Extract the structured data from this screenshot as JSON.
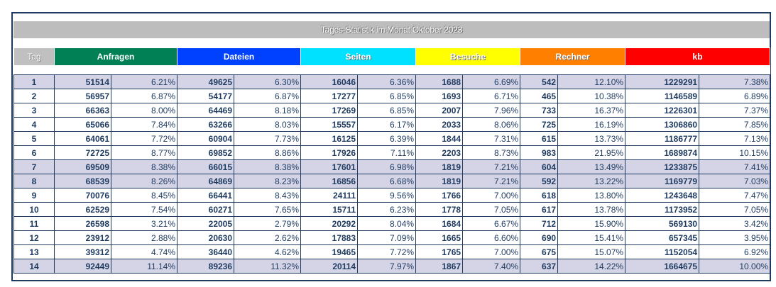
{
  "title": "Tages-Statistik im Monat Oktober 2023",
  "columns": {
    "tag": "Tag",
    "anfragen": "Anfragen",
    "dateien": "Dateien",
    "seiten": "Seiten",
    "besuche": "Besuche",
    "rechner": "Rechner",
    "kb": "kb"
  },
  "colors": {
    "anfragen": "#008054",
    "dateien": "#0040ff",
    "seiten": "#00e0ff",
    "besuche": "#ffff00",
    "rechner": "#ff8000",
    "kb": "#ff0000",
    "weekend_row": "#d4d4e6"
  },
  "rows": [
    {
      "tag": "1",
      "weekend": true,
      "anfragen": "51514",
      "anfragen_pct": "6.21%",
      "dateien": "49625",
      "dateien_pct": "6.30%",
      "seiten": "16046",
      "seiten_pct": "6.36%",
      "besuche": "1688",
      "besuche_pct": "6.69%",
      "rechner": "542",
      "rechner_pct": "12.10%",
      "kb": "1229291",
      "kb_pct": "7.38%"
    },
    {
      "tag": "2",
      "weekend": false,
      "anfragen": "56957",
      "anfragen_pct": "6.87%",
      "dateien": "54177",
      "dateien_pct": "6.87%",
      "seiten": "17277",
      "seiten_pct": "6.85%",
      "besuche": "1693",
      "besuche_pct": "6.71%",
      "rechner": "465",
      "rechner_pct": "10.38%",
      "kb": "1146589",
      "kb_pct": "6.89%"
    },
    {
      "tag": "3",
      "weekend": false,
      "anfragen": "66363",
      "anfragen_pct": "8.00%",
      "dateien": "64469",
      "dateien_pct": "8.18%",
      "seiten": "17269",
      "seiten_pct": "6.85%",
      "besuche": "2007",
      "besuche_pct": "7.96%",
      "rechner": "733",
      "rechner_pct": "16.37%",
      "kb": "1226301",
      "kb_pct": "7.37%"
    },
    {
      "tag": "4",
      "weekend": false,
      "anfragen": "65066",
      "anfragen_pct": "7.84%",
      "dateien": "63266",
      "dateien_pct": "8.03%",
      "seiten": "15557",
      "seiten_pct": "6.17%",
      "besuche": "2033",
      "besuche_pct": "8.06%",
      "rechner": "725",
      "rechner_pct": "16.19%",
      "kb": "1306860",
      "kb_pct": "7.85%"
    },
    {
      "tag": "5",
      "weekend": false,
      "anfragen": "64061",
      "anfragen_pct": "7.72%",
      "dateien": "60904",
      "dateien_pct": "7.73%",
      "seiten": "16125",
      "seiten_pct": "6.39%",
      "besuche": "1844",
      "besuche_pct": "7.31%",
      "rechner": "615",
      "rechner_pct": "13.73%",
      "kb": "1186777",
      "kb_pct": "7.13%"
    },
    {
      "tag": "6",
      "weekend": false,
      "anfragen": "72725",
      "anfragen_pct": "8.77%",
      "dateien": "69852",
      "dateien_pct": "8.86%",
      "seiten": "17926",
      "seiten_pct": "7.11%",
      "besuche": "2203",
      "besuche_pct": "8.73%",
      "rechner": "983",
      "rechner_pct": "21.95%",
      "kb": "1689874",
      "kb_pct": "10.15%"
    },
    {
      "tag": "7",
      "weekend": true,
      "anfragen": "69509",
      "anfragen_pct": "8.38%",
      "dateien": "66015",
      "dateien_pct": "8.38%",
      "seiten": "17601",
      "seiten_pct": "6.98%",
      "besuche": "1819",
      "besuche_pct": "7.21%",
      "rechner": "604",
      "rechner_pct": "13.49%",
      "kb": "1233875",
      "kb_pct": "7.41%"
    },
    {
      "tag": "8",
      "weekend": true,
      "anfragen": "68539",
      "anfragen_pct": "8.26%",
      "dateien": "64869",
      "dateien_pct": "8.23%",
      "seiten": "16856",
      "seiten_pct": "6.68%",
      "besuche": "1819",
      "besuche_pct": "7.21%",
      "rechner": "592",
      "rechner_pct": "13.22%",
      "kb": "1169779",
      "kb_pct": "7.03%"
    },
    {
      "tag": "9",
      "weekend": false,
      "anfragen": "70076",
      "anfragen_pct": "8.45%",
      "dateien": "66441",
      "dateien_pct": "8.43%",
      "seiten": "24111",
      "seiten_pct": "9.56%",
      "besuche": "1766",
      "besuche_pct": "7.00%",
      "rechner": "618",
      "rechner_pct": "13.80%",
      "kb": "1243648",
      "kb_pct": "7.47%"
    },
    {
      "tag": "10",
      "weekend": false,
      "anfragen": "62529",
      "anfragen_pct": "7.54%",
      "dateien": "60271",
      "dateien_pct": "7.65%",
      "seiten": "15711",
      "seiten_pct": "6.23%",
      "besuche": "1778",
      "besuche_pct": "7.05%",
      "rechner": "617",
      "rechner_pct": "13.78%",
      "kb": "1173952",
      "kb_pct": "7.05%"
    },
    {
      "tag": "11",
      "weekend": false,
      "anfragen": "26598",
      "anfragen_pct": "3.21%",
      "dateien": "22005",
      "dateien_pct": "2.79%",
      "seiten": "20292",
      "seiten_pct": "8.04%",
      "besuche": "1684",
      "besuche_pct": "6.67%",
      "rechner": "712",
      "rechner_pct": "15.90%",
      "kb": "569130",
      "kb_pct": "3.42%"
    },
    {
      "tag": "12",
      "weekend": false,
      "anfragen": "23912",
      "anfragen_pct": "2.88%",
      "dateien": "20630",
      "dateien_pct": "2.62%",
      "seiten": "17883",
      "seiten_pct": "7.09%",
      "besuche": "1665",
      "besuche_pct": "6.60%",
      "rechner": "690",
      "rechner_pct": "15.41%",
      "kb": "657345",
      "kb_pct": "3.95%"
    },
    {
      "tag": "13",
      "weekend": false,
      "anfragen": "39312",
      "anfragen_pct": "4.74%",
      "dateien": "36440",
      "dateien_pct": "4.62%",
      "seiten": "19465",
      "seiten_pct": "7.72%",
      "besuche": "1765",
      "besuche_pct": "7.00%",
      "rechner": "675",
      "rechner_pct": "15.07%",
      "kb": "1152054",
      "kb_pct": "6.92%"
    },
    {
      "tag": "14",
      "weekend": true,
      "anfragen": "92449",
      "anfragen_pct": "11.14%",
      "dateien": "89236",
      "dateien_pct": "11.32%",
      "seiten": "20114",
      "seiten_pct": "7.97%",
      "besuche": "1867",
      "besuche_pct": "7.40%",
      "rechner": "637",
      "rechner_pct": "14.22%",
      "kb": "1664675",
      "kb_pct": "10.00%"
    }
  ]
}
